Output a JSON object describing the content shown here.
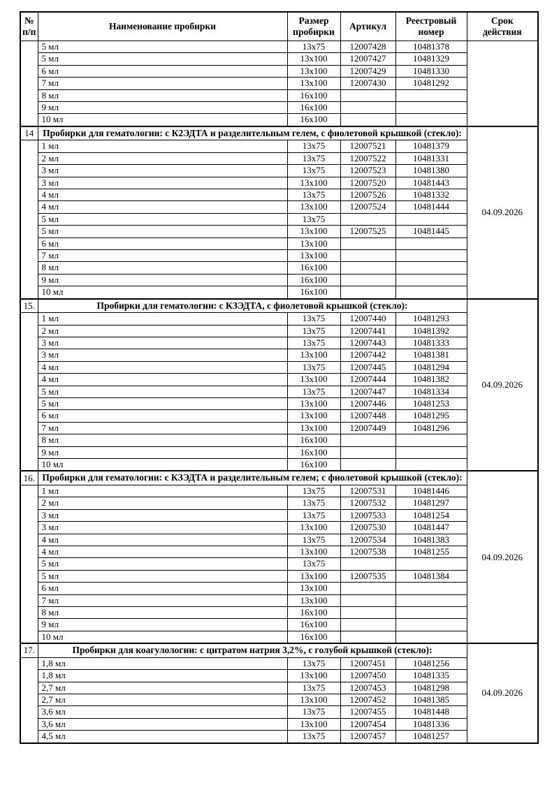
{
  "colors": {
    "text": "#000000",
    "border": "#000000",
    "background": "#ffffff"
  },
  "table": {
    "headers": {
      "num": "№\nп/п",
      "name": "Наименование пробирки",
      "size": "Размер\nпробирки",
      "article": "Артикул",
      "reg": "Реестровый\nномер",
      "validity": "Срок\nдействия"
    },
    "sections": [
      {
        "number": "",
        "title": null,
        "validity": "",
        "rows": [
          [
            "5 мл",
            "13x75",
            "12007428",
            "10481378"
          ],
          [
            "5 мл",
            "13x100",
            "12007427",
            "10481329"
          ],
          [
            "6 мл",
            "13x100",
            "12007429",
            "10481330"
          ],
          [
            "7 мл",
            "13x100",
            "12007430",
            "10481292"
          ],
          [
            "8 мл",
            "16x100",
            "",
            ""
          ],
          [
            "9 мл",
            "16x100",
            "",
            ""
          ],
          [
            "10 мл",
            "16x100",
            "",
            ""
          ]
        ]
      },
      {
        "number": "14",
        "title": "Пробирки для гематологии: с К2ЭДТА и разделительным гелем, с фиолетовой крышкой (стекло):",
        "validity": "04.09.2026",
        "rows": [
          [
            "1 мл",
            "13x75",
            "12007521",
            "10481379"
          ],
          [
            "2 мл",
            "13x75",
            "12007522",
            "10481331"
          ],
          [
            "3 мл",
            "13x75",
            "12007523",
            "10481380"
          ],
          [
            "3 мл",
            "13x100",
            "12007520",
            "10481443"
          ],
          [
            "4 мл",
            "13x75",
            "12007526",
            "10481332"
          ],
          [
            "4 мл",
            "13x100",
            "12007524",
            "10481444"
          ],
          [
            "5 мл",
            "13x75",
            "",
            ""
          ],
          [
            "5 мл",
            "13x100",
            "12007525",
            "10481445"
          ],
          [
            "6 мл",
            "13x100",
            "",
            ""
          ],
          [
            "7 мл",
            "13x100",
            "",
            ""
          ],
          [
            "8 мл",
            "16x100",
            "",
            ""
          ],
          [
            "9 мл",
            "16x100",
            "",
            ""
          ],
          [
            "10 мл",
            "16x100",
            "",
            ""
          ]
        ]
      },
      {
        "number": "15.",
        "title": "Пробирки для гематологии: с КЗЭДТА, с фиолетовой крышкой (стекло):",
        "validity": "04.09.2026",
        "rows": [
          [
            "1 мл",
            "13x75",
            "12007440",
            "10481293"
          ],
          [
            "2 мл",
            "13x75",
            "12007441",
            "10481392"
          ],
          [
            "3 мл",
            "13x75",
            "12007443",
            "10481333"
          ],
          [
            "3 мл",
            "13x100",
            "12007442",
            "10481381"
          ],
          [
            "4 мл",
            "13x75",
            "12007445",
            "10481294"
          ],
          [
            "4 мл",
            "13x100",
            "12007444",
            "10481382"
          ],
          [
            "5 мл",
            "13x75",
            "12007447",
            "10481334"
          ],
          [
            "5 мл",
            "13x100",
            "12007446",
            "10481253"
          ],
          [
            "6 мл",
            "13x100",
            "12007448",
            "10481295"
          ],
          [
            "7 мл",
            "13x100",
            "12007449",
            "10481296"
          ],
          [
            "8 мл",
            "16x100",
            "",
            ""
          ],
          [
            "9 мл",
            "16x100",
            "",
            ""
          ],
          [
            "10 мл",
            "16x100",
            "",
            ""
          ]
        ]
      },
      {
        "number": "16.",
        "title": "Пробирки для гематологии: с КЗЭДТА и разделительным гелем; с фиолетовой крышкой (стекло):",
        "validity": "04.09.2026",
        "rows": [
          [
            "1 мл",
            "13x75",
            "12007531",
            "10481446"
          ],
          [
            "2 мл",
            "13x75",
            "12007532",
            "10481297"
          ],
          [
            "3 мл",
            "13x75",
            "12007533",
            "10481254"
          ],
          [
            "3 мл",
            "13x100",
            "12007530",
            "10481447"
          ],
          [
            "4 мл",
            "13x75",
            "12007534",
            "10481383"
          ],
          [
            "4 мл",
            "13x100",
            "12007538",
            "10481255"
          ],
          [
            "5 мл",
            "13x75",
            "",
            ""
          ],
          [
            "5 мл",
            "13x100",
            "12007535",
            "10481384"
          ],
          [
            "6 мл",
            "13x100",
            "",
            ""
          ],
          [
            "7 мл",
            "13x100",
            "",
            ""
          ],
          [
            "8 мл",
            "16x100",
            "",
            ""
          ],
          [
            "9 мл",
            "16x100",
            "",
            ""
          ],
          [
            "10 мл",
            "16x100",
            "",
            ""
          ]
        ]
      },
      {
        "number": "17.",
        "title": "Пробирки для коагулологии: с цитратом натрия 3,2%, с голубой крышкой (стекло):",
        "validity": "04.09.2026",
        "rows": [
          [
            "1,8 мл",
            "13x75",
            "12007451",
            "10481256"
          ],
          [
            "1,8 мл",
            "13x100",
            "12007450",
            "10481335"
          ],
          [
            "2,7 мл",
            "13x75",
            "12007453",
            "10481298"
          ],
          [
            "2,7 мл",
            "13x100",
            "12007452",
            "10481385"
          ],
          [
            "3,6 мл",
            "13x75",
            "12007455",
            "10481448"
          ],
          [
            "3,6 мл",
            "13x100",
            "12007454",
            "10481336"
          ],
          [
            "4,5 мл",
            "13x75",
            "12007457",
            "10481257"
          ]
        ]
      }
    ]
  }
}
